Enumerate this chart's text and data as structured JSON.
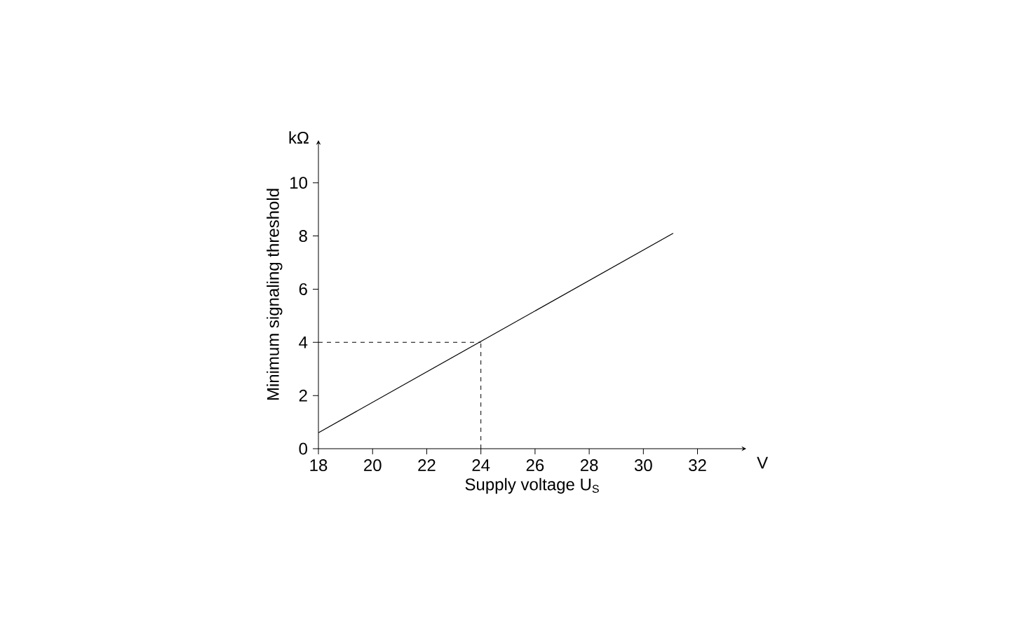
{
  "chart_data": {
    "type": "line",
    "xlabel": "Supply voltage U$_{S}$",
    "ylabel": "Minimum signaling threshold",
    "x": [
      18,
      31.1
    ],
    "series": [
      {
        "color": "#000000",
        "values": [
          0.6,
          8.1
        ]
      }
    ],
    "xlim": [
      18,
      33.8
    ],
    "ylim": [
      0,
      11.6
    ],
    "xticks": [
      18,
      20,
      22,
      24,
      26,
      28,
      30,
      32
    ],
    "yticks": [
      0,
      2,
      4,
      6,
      8,
      10
    ],
    "ref_lines": [
      {
        "axis": "x",
        "value": 24,
        "line_style": "dashed",
        "color": "#000000"
      },
      {
        "axis": "y",
        "value": 4,
        "line_style": "dashed",
        "color": "#000000"
      }
    ],
    "annotations": [
      "kΩ",
      "V"
    ],
    "grid": false,
    "marker": "none",
    "line_style": "solid"
  }
}
